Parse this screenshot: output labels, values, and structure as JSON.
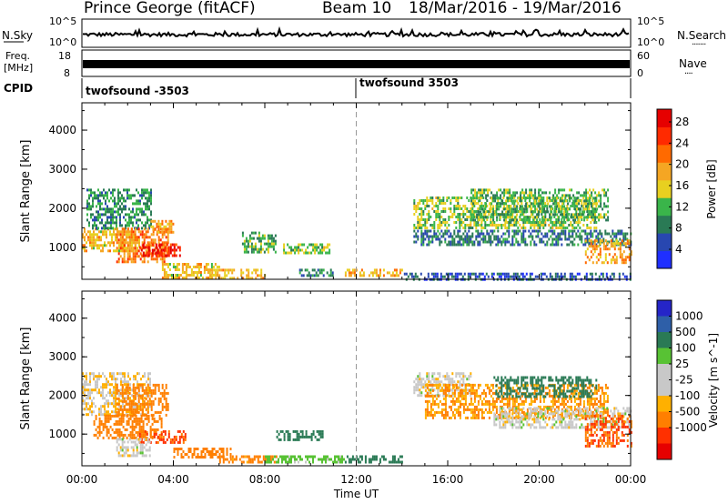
{
  "header": {
    "title": "Prince George (fitACF)",
    "beam": "Beam 10",
    "date_range": "18/Mar/2016 - 19/Mar/2016"
  },
  "panels": {
    "nsky_label": "N.Sky",
    "nsky_ticks": [
      "10^5",
      "10^0"
    ],
    "nsearch_label": "N.Search",
    "nsearch_ticks": [
      "10^5",
      "10^0"
    ],
    "freq_label": "Freq.",
    "freq_unit": "[MHz]",
    "freq_ticks": [
      "18",
      "8"
    ],
    "nave_label": "Nave",
    "nave_ticks": [
      "60",
      "0"
    ],
    "cpid_label": "CPID",
    "cpid_segments": [
      "twofsound -3503",
      "twofsound 3503"
    ]
  },
  "colors": {
    "power": [
      "#1f2fff",
      "#2847b0",
      "#2a7a55",
      "#3ab54a",
      "#e8d020",
      "#f5a623",
      "#ff6a00",
      "#ff2a00",
      "#e60000"
    ],
    "velocity": [
      "#2525c8",
      "#2e5fa8",
      "#2a7a55",
      "#58c234",
      "#c8c8c8",
      "#c8c8c8",
      "#ffb000",
      "#ff7f00",
      "#ff3000",
      "#e60000"
    ]
  },
  "chart_data": [
    {
      "type": "heatmap",
      "title": "",
      "quantity": "Power",
      "xlabel": "",
      "ylabel": "Slant Range [km]",
      "x_ticks": [
        "00:00",
        "04:00",
        "08:00",
        "12:00",
        "16:00",
        "20:00",
        "00:00"
      ],
      "xlim_hours": [
        0,
        24
      ],
      "y_ticks": [
        1000,
        2000,
        3000,
        4000
      ],
      "ylim": [
        180,
        4700
      ],
      "colorbar": {
        "label": "Power [dB]",
        "ticks": [
          4,
          8,
          12,
          16,
          20,
          24,
          28
        ]
      },
      "regions": [
        {
          "t": [
            0.0,
            2.5
          ],
          "r": [
            900,
            1500
          ],
          "v": 18
        },
        {
          "t": [
            0.2,
            3.0
          ],
          "r": [
            1500,
            2500
          ],
          "v": 10
        },
        {
          "t": [
            1.5,
            3.8
          ],
          "r": [
            600,
            1500
          ],
          "v": 22
        },
        {
          "t": [
            2.5,
            4.3
          ],
          "r": [
            800,
            1100
          ],
          "v": 28
        },
        {
          "t": [
            3.0,
            4.0
          ],
          "r": [
            1400,
            1700
          ],
          "v": 20
        },
        {
          "t": [
            3.5,
            6.0
          ],
          "r": [
            250,
            600
          ],
          "v": 18
        },
        {
          "t": [
            5.5,
            8.0
          ],
          "r": [
            230,
            450
          ],
          "v": 18
        },
        {
          "t": [
            7.0,
            8.5
          ],
          "r": [
            900,
            1400
          ],
          "v": 12
        },
        {
          "t": [
            8.8,
            10.8
          ],
          "r": [
            850,
            1100
          ],
          "v": 14
        },
        {
          "t": [
            9.5,
            11.0
          ],
          "r": [
            250,
            450
          ],
          "v": 10
        },
        {
          "t": [
            11.5,
            14.0
          ],
          "r": [
            250,
            450
          ],
          "v": 20
        },
        {
          "t": [
            14.5,
            22.5
          ],
          "r": [
            1500,
            2300
          ],
          "v": 14
        },
        {
          "t": [
            17.0,
            23.0
          ],
          "r": [
            1700,
            2500
          ],
          "v": 12
        },
        {
          "t": [
            14.5,
            24.0
          ],
          "r": [
            1100,
            1450
          ],
          "v": 8
        },
        {
          "t": [
            22.0,
            24.0
          ],
          "r": [
            600,
            1200
          ],
          "v": 20
        },
        {
          "t": [
            14.0,
            24.0
          ],
          "r": [
            200,
            350
          ],
          "v": 6
        }
      ]
    },
    {
      "type": "heatmap",
      "title": "",
      "quantity": "Velocity",
      "xlabel": "Time UT",
      "ylabel": "Slant Range [km]",
      "x_ticks": [
        "00:00",
        "04:00",
        "08:00",
        "12:00",
        "16:00",
        "20:00",
        "00:00"
      ],
      "xlim_hours": [
        0,
        24
      ],
      "y_ticks": [
        1000,
        2000,
        3000,
        4000
      ],
      "ylim": [
        180,
        4700
      ],
      "colorbar": {
        "label": "Velocity [m s^-1]",
        "ticks": [
          1000,
          500,
          100,
          25,
          -25,
          -100,
          -500,
          -1000
        ]
      },
      "regions": [
        {
          "t": [
            0.0,
            3.0
          ],
          "r": [
            1500,
            2600
          ],
          "v": -25
        },
        {
          "t": [
            0.5,
            3.5
          ],
          "r": [
            900,
            1500
          ],
          "v": -200
        },
        {
          "t": [
            1.5,
            3.8
          ],
          "r": [
            1500,
            2300
          ],
          "v": -300
        },
        {
          "t": [
            2.5,
            4.5
          ],
          "r": [
            800,
            1100
          ],
          "v": -600
        },
        {
          "t": [
            1.5,
            3.0
          ],
          "r": [
            450,
            900
          ],
          "v": 0
        },
        {
          "t": [
            4.0,
            6.5
          ],
          "r": [
            400,
            650
          ],
          "v": -200
        },
        {
          "t": [
            6.0,
            8.5
          ],
          "r": [
            250,
            450
          ],
          "v": -150
        },
        {
          "t": [
            8.0,
            11.5
          ],
          "r": [
            250,
            450
          ],
          "v": 50
        },
        {
          "t": [
            11.5,
            14.0
          ],
          "r": [
            250,
            450
          ],
          "v": 200
        },
        {
          "t": [
            8.5,
            10.5
          ],
          "r": [
            850,
            1100
          ],
          "v": 300
        },
        {
          "t": [
            14.5,
            17.0
          ],
          "r": [
            2000,
            2600
          ],
          "v": 0
        },
        {
          "t": [
            15.0,
            23.0
          ],
          "r": [
            1400,
            2300
          ],
          "v": -100
        },
        {
          "t": [
            18.0,
            22.5
          ],
          "r": [
            2000,
            2500
          ],
          "v": 200
        },
        {
          "t": [
            18.0,
            24.0
          ],
          "r": [
            1200,
            1700
          ],
          "v": 0
        },
        {
          "t": [
            22.0,
            24.0
          ],
          "r": [
            700,
            1500
          ],
          "v": -500
        }
      ]
    }
  ]
}
